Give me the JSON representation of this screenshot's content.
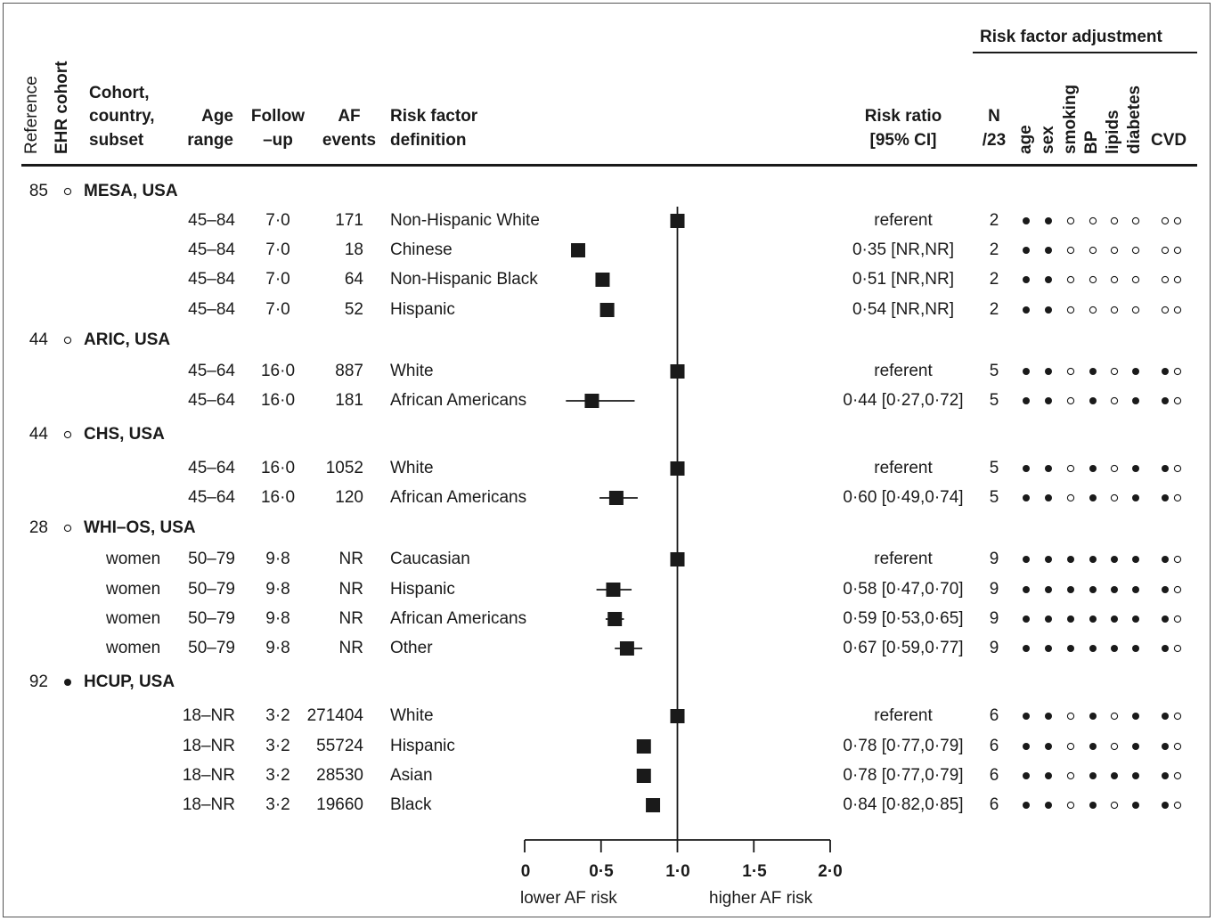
{
  "header": {
    "group_title": "Risk factor adjustment",
    "reference": "Reference",
    "ehr_cohort": "EHR cohort",
    "cohort_lines": [
      "Cohort,",
      "country,",
      "subset"
    ],
    "age_lines": [
      "Age",
      "range"
    ],
    "follow_lines": [
      "Follow",
      "–up"
    ],
    "af_lines": [
      "AF",
      "events"
    ],
    "def_lines": [
      "Risk factor",
      "definition"
    ],
    "rr_lines": [
      "Risk ratio",
      "[95% CI]"
    ],
    "n_lines": [
      "N",
      "/23"
    ],
    "adjusters": [
      "age",
      "sex",
      "smoking",
      "BP",
      "lipids",
      "diabetes"
    ],
    "cvd": "CVD"
  },
  "axis": {
    "ticks": [
      "0",
      "0·5",
      "1·0",
      "1·5",
      "2·0"
    ],
    "left_label": "lower AF risk",
    "right_label": "higher AF risk"
  },
  "colors": {
    "ink": "#1a1a1a",
    "frame": "#555555"
  },
  "chart_data": {
    "type": "forest",
    "x_scale": "linear",
    "xlim": [
      0,
      2
    ],
    "reference_line": 1.0,
    "cohorts": [
      {
        "reference": "85",
        "ehr": false,
        "name": "MESA, USA",
        "rows": [
          {
            "subset": "",
            "age": "45–84",
            "follow": "7·0",
            "events": "171",
            "definition": "Non-Hispanic White",
            "rr_text": "referent",
            "rr": 1.0,
            "lo": null,
            "hi": null,
            "n": "2",
            "adj": [
              1,
              1,
              0,
              0,
              0,
              0
            ],
            "cvd": [
              0,
              0
            ]
          },
          {
            "subset": "",
            "age": "45–84",
            "follow": "7·0",
            "events": "18",
            "definition": "Chinese",
            "rr_text": "0·35 [NR,NR]",
            "rr": 0.35,
            "lo": null,
            "hi": null,
            "n": "2",
            "adj": [
              1,
              1,
              0,
              0,
              0,
              0
            ],
            "cvd": [
              0,
              0
            ]
          },
          {
            "subset": "",
            "age": "45–84",
            "follow": "7·0",
            "events": "64",
            "definition": "Non-Hispanic Black",
            "rr_text": "0·51 [NR,NR]",
            "rr": 0.51,
            "lo": null,
            "hi": null,
            "n": "2",
            "adj": [
              1,
              1,
              0,
              0,
              0,
              0
            ],
            "cvd": [
              0,
              0
            ]
          },
          {
            "subset": "",
            "age": "45–84",
            "follow": "7·0",
            "events": "52",
            "definition": "Hispanic",
            "rr_text": "0·54 [NR,NR]",
            "rr": 0.54,
            "lo": null,
            "hi": null,
            "n": "2",
            "adj": [
              1,
              1,
              0,
              0,
              0,
              0
            ],
            "cvd": [
              0,
              0
            ]
          }
        ]
      },
      {
        "reference": "44",
        "ehr": false,
        "name": "ARIC, USA",
        "rows": [
          {
            "subset": "",
            "age": "45–64",
            "follow": "16·0",
            "events": "887",
            "definition": "White",
            "rr_text": "referent",
            "rr": 1.0,
            "lo": null,
            "hi": null,
            "n": "5",
            "adj": [
              1,
              1,
              0,
              1,
              0,
              1
            ],
            "cvd": [
              1,
              0
            ]
          },
          {
            "subset": "",
            "age": "45–64",
            "follow": "16·0",
            "events": "181",
            "definition": "African Americans",
            "rr_text": "0·44 [0·27,0·72]",
            "rr": 0.44,
            "lo": 0.27,
            "hi": 0.72,
            "n": "5",
            "adj": [
              1,
              1,
              0,
              1,
              0,
              1
            ],
            "cvd": [
              1,
              0
            ]
          }
        ]
      },
      {
        "reference": "44",
        "ehr": false,
        "name": "CHS, USA",
        "rows": [
          {
            "subset": "",
            "age": "45–64",
            "follow": "16·0",
            "events": "1052",
            "definition": "White",
            "rr_text": "referent",
            "rr": 1.0,
            "lo": null,
            "hi": null,
            "n": "5",
            "adj": [
              1,
              1,
              0,
              1,
              0,
              1
            ],
            "cvd": [
              1,
              0
            ]
          },
          {
            "subset": "",
            "age": "45–64",
            "follow": "16·0",
            "events": "120",
            "definition": "African Americans",
            "rr_text": "0·60 [0·49,0·74]",
            "rr": 0.6,
            "lo": 0.49,
            "hi": 0.74,
            "n": "5",
            "adj": [
              1,
              1,
              0,
              1,
              0,
              1
            ],
            "cvd": [
              1,
              0
            ]
          }
        ]
      },
      {
        "reference": "28",
        "ehr": false,
        "name": "WHI–OS, USA",
        "rows": [
          {
            "subset": "women",
            "age": "50–79",
            "follow": "9·8",
            "events": "NR",
            "definition": "Caucasian",
            "rr_text": "referent",
            "rr": 1.0,
            "lo": null,
            "hi": null,
            "n": "9",
            "adj": [
              1,
              1,
              1,
              1,
              1,
              1
            ],
            "cvd": [
              1,
              0
            ]
          },
          {
            "subset": "women",
            "age": "50–79",
            "follow": "9·8",
            "events": "NR",
            "definition": "Hispanic",
            "rr_text": "0·58 [0·47,0·70]",
            "rr": 0.58,
            "lo": 0.47,
            "hi": 0.7,
            "n": "9",
            "adj": [
              1,
              1,
              1,
              1,
              1,
              1
            ],
            "cvd": [
              1,
              0
            ]
          },
          {
            "subset": "women",
            "age": "50–79",
            "follow": "9·8",
            "events": "NR",
            "definition": "African Americans",
            "rr_text": "0·59 [0·53,0·65]",
            "rr": 0.59,
            "lo": 0.53,
            "hi": 0.65,
            "n": "9",
            "adj": [
              1,
              1,
              1,
              1,
              1,
              1
            ],
            "cvd": [
              1,
              0
            ]
          },
          {
            "subset": "women",
            "age": "50–79",
            "follow": "9·8",
            "events": "NR",
            "definition": "Other",
            "rr_text": "0·67 [0·59,0·77]",
            "rr": 0.67,
            "lo": 0.59,
            "hi": 0.77,
            "n": "9",
            "adj": [
              1,
              1,
              1,
              1,
              1,
              1
            ],
            "cvd": [
              1,
              0
            ]
          }
        ]
      },
      {
        "reference": "92",
        "ehr": true,
        "name": "HCUP, USA",
        "rows": [
          {
            "subset": "",
            "age": "18–NR",
            "follow": "3·2",
            "events": "271404",
            "definition": "White",
            "rr_text": "referent",
            "rr": 1.0,
            "lo": null,
            "hi": null,
            "n": "6",
            "adj": [
              1,
              1,
              0,
              1,
              0,
              1
            ],
            "cvd": [
              1,
              0
            ]
          },
          {
            "subset": "",
            "age": "18–NR",
            "follow": "3·2",
            "events": "55724",
            "definition": "Hispanic",
            "rr_text": "0·78 [0·77,0·79]",
            "rr": 0.78,
            "lo": 0.77,
            "hi": 0.79,
            "n": "6",
            "adj": [
              1,
              1,
              0,
              1,
              0,
              1
            ],
            "cvd": [
              1,
              0
            ]
          },
          {
            "subset": "",
            "age": "18–NR",
            "follow": "3·2",
            "events": "28530",
            "definition": "Asian",
            "rr_text": "0·78 [0·77,0·79]",
            "rr": 0.78,
            "lo": 0.77,
            "hi": 0.79,
            "n": "6",
            "adj": [
              1,
              1,
              0,
              1,
              1,
              1
            ],
            "cvd": [
              1,
              0
            ]
          },
          {
            "subset": "",
            "age": "18–NR",
            "follow": "3·2",
            "events": "19660",
            "definition": "Black",
            "rr_text": "0·84 [0·82,0·85]",
            "rr": 0.84,
            "lo": 0.82,
            "hi": 0.85,
            "n": "6",
            "adj": [
              1,
              1,
              0,
              1,
              0,
              1
            ],
            "cvd": [
              1,
              0
            ]
          }
        ]
      }
    ]
  }
}
